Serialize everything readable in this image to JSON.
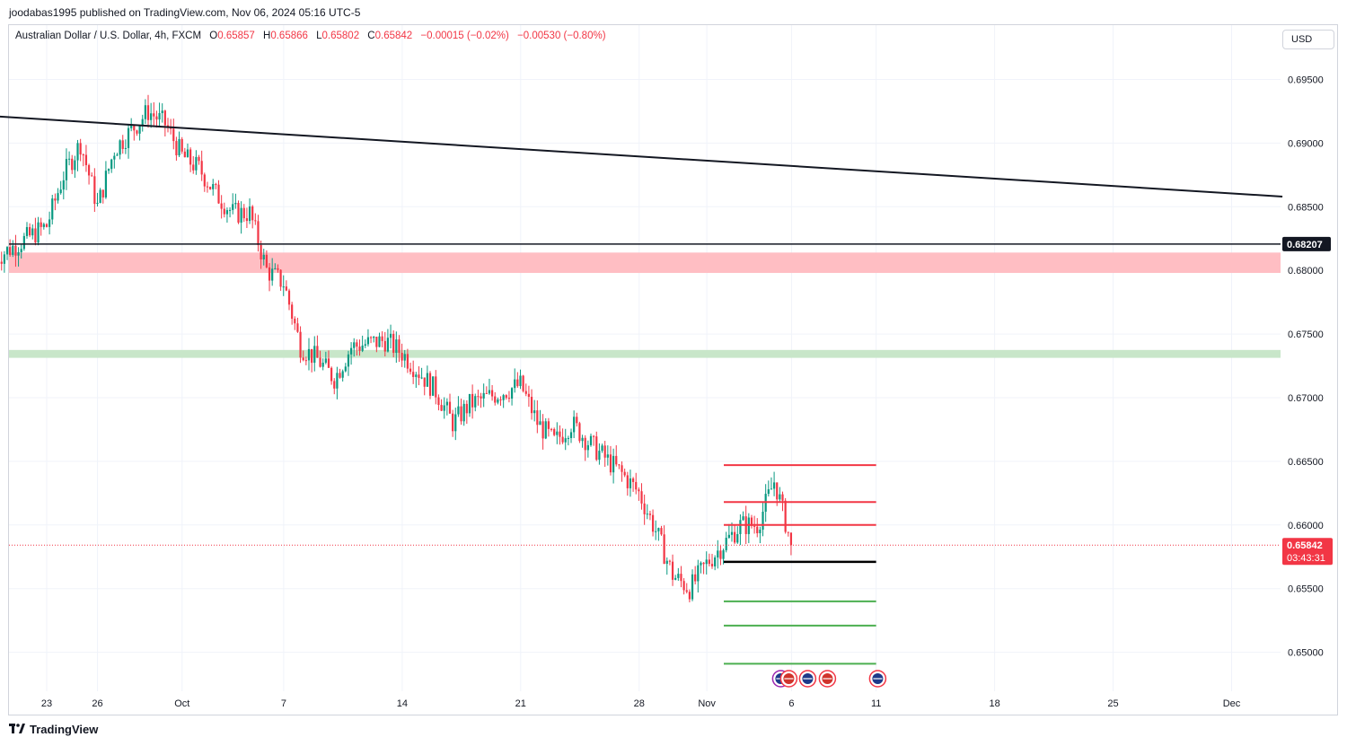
{
  "header": {
    "publish_line": "joodabas1995 published on TradingView.com, Nov 06, 2024 05:16 UTC-5"
  },
  "legend": {
    "symbol": "Australian Dollar / U.S. Dollar, 4h, FXCM",
    "open_label": "O",
    "open": "0.65857",
    "high_label": "H",
    "high": "0.65866",
    "low_label": "L",
    "low": "0.65802",
    "close_label": "C",
    "close": "0.65842",
    "change": "−0.00015 (−0.02%)",
    "change_total": "−0.00530 (−0.80%)"
  },
  "currency": "USD",
  "footer": {
    "brand": "TradingView"
  },
  "colors": {
    "up": "#089981",
    "down": "#f23645",
    "resistance_zone": "#ffbec3",
    "support_zone": "#c8e6c9",
    "target_green": "#4caf50",
    "stop_red": "#f23645"
  },
  "chart_data": {
    "type": "candlestick",
    "symbol": "AUDUSD",
    "interval": "4h",
    "ylim": [
      0.6476,
      0.6993
    ],
    "y_ticks": [
      {
        "value": 0.695,
        "label": "0.69500"
      },
      {
        "value": 0.69,
        "label": "0.69000"
      },
      {
        "value": 0.685,
        "label": "0.68500"
      },
      {
        "value": 0.68,
        "label": "0.68000"
      },
      {
        "value": 0.675,
        "label": "0.67500"
      },
      {
        "value": 0.67,
        "label": "0.67000"
      },
      {
        "value": 0.665,
        "label": "0.66500"
      },
      {
        "value": 0.66,
        "label": "0.66000"
      },
      {
        "value": 0.655,
        "label": "0.65500"
      },
      {
        "value": 0.65,
        "label": "0.65000"
      }
    ],
    "x_ticks": [
      {
        "date": "2024-09-23",
        "label": "23"
      },
      {
        "date": "2024-09-26",
        "label": "26"
      },
      {
        "date": "2024-10-01",
        "label": "Oct"
      },
      {
        "date": "2024-10-07",
        "label": "7"
      },
      {
        "date": "2024-10-14",
        "label": "14"
      },
      {
        "date": "2024-10-21",
        "label": "21"
      },
      {
        "date": "2024-10-28",
        "label": "28"
      },
      {
        "date": "2024-11-01",
        "label": "Nov"
      },
      {
        "date": "2024-11-06",
        "label": "6"
      },
      {
        "date": "2024-11-11",
        "label": "11"
      },
      {
        "date": "2024-11-18",
        "label": "18"
      },
      {
        "date": "2024-11-25",
        "label": "25"
      },
      {
        "date": "2024-12-02",
        "label": "Dec"
      }
    ],
    "price_path": [
      [
        "2024-09-20",
        0.681
      ],
      [
        "2024-09-23",
        0.6835
      ],
      [
        "2024-09-24",
        0.6875
      ],
      [
        "2024-09-25",
        0.69
      ],
      [
        "2024-09-26",
        0.685
      ],
      [
        "2024-09-27",
        0.6895
      ],
      [
        "2024-09-29",
        0.6925
      ],
      [
        "2024-09-30",
        0.6915
      ],
      [
        "2024-10-01",
        0.689
      ],
      [
        "2024-10-02",
        0.688
      ],
      [
        "2024-10-03",
        0.686
      ],
      [
        "2024-10-04",
        0.6845
      ],
      [
        "2024-10-05",
        0.6845
      ],
      [
        "2024-10-06",
        0.68
      ],
      [
        "2024-10-07",
        0.679
      ],
      [
        "2024-10-08",
        0.674
      ],
      [
        "2024-10-09",
        0.673
      ],
      [
        "2024-10-10",
        0.6715
      ],
      [
        "2024-10-11",
        0.674
      ],
      [
        "2024-10-13",
        0.6745
      ],
      [
        "2024-10-14",
        0.6735
      ],
      [
        "2024-10-15",
        0.672
      ],
      [
        "2024-10-16",
        0.6705
      ],
      [
        "2024-10-17",
        0.668
      ],
      [
        "2024-10-18",
        0.6695
      ],
      [
        "2024-10-20",
        0.6705
      ],
      [
        "2024-10-21",
        0.671
      ],
      [
        "2024-10-22",
        0.668
      ],
      [
        "2024-10-23",
        0.6665
      ],
      [
        "2024-10-24",
        0.668
      ],
      [
        "2024-10-25",
        0.6665
      ],
      [
        "2024-10-27",
        0.664
      ],
      [
        "2024-10-28",
        0.6625
      ],
      [
        "2024-10-29",
        0.6595
      ],
      [
        "2024-10-30",
        0.656
      ],
      [
        "2024-10-31",
        0.655
      ],
      [
        "2024-11-01",
        0.657
      ],
      [
        "2024-11-03",
        0.66
      ],
      [
        "2024-11-04",
        0.66
      ],
      [
        "2024-11-05",
        0.6635
      ],
      [
        "2024-11-06",
        0.6584
      ]
    ],
    "last_close": 0.65842,
    "last_price_label": "0.65842",
    "countdown_label": "03:43:31",
    "annotations": {
      "trendline": {
        "from": [
          "2024-09-20",
          0.6921
        ],
        "to": [
          "2024-12-05",
          0.6858
        ]
      },
      "horizontal_line": {
        "value": 0.68207,
        "label": "0.68207"
      },
      "resistance_zone": [
        0.6798,
        0.6814
      ],
      "support_zone": [
        0.67313,
        0.67375
      ],
      "trade_levels": {
        "start": "2024-11-02",
        "end": "2024-11-11",
        "entry": 0.6571,
        "stops": [
          0.6647,
          0.6618,
          0.66
        ],
        "targets": [
          0.654,
          0.6521,
          0.6491
        ]
      },
      "event_icons": 5
    }
  }
}
